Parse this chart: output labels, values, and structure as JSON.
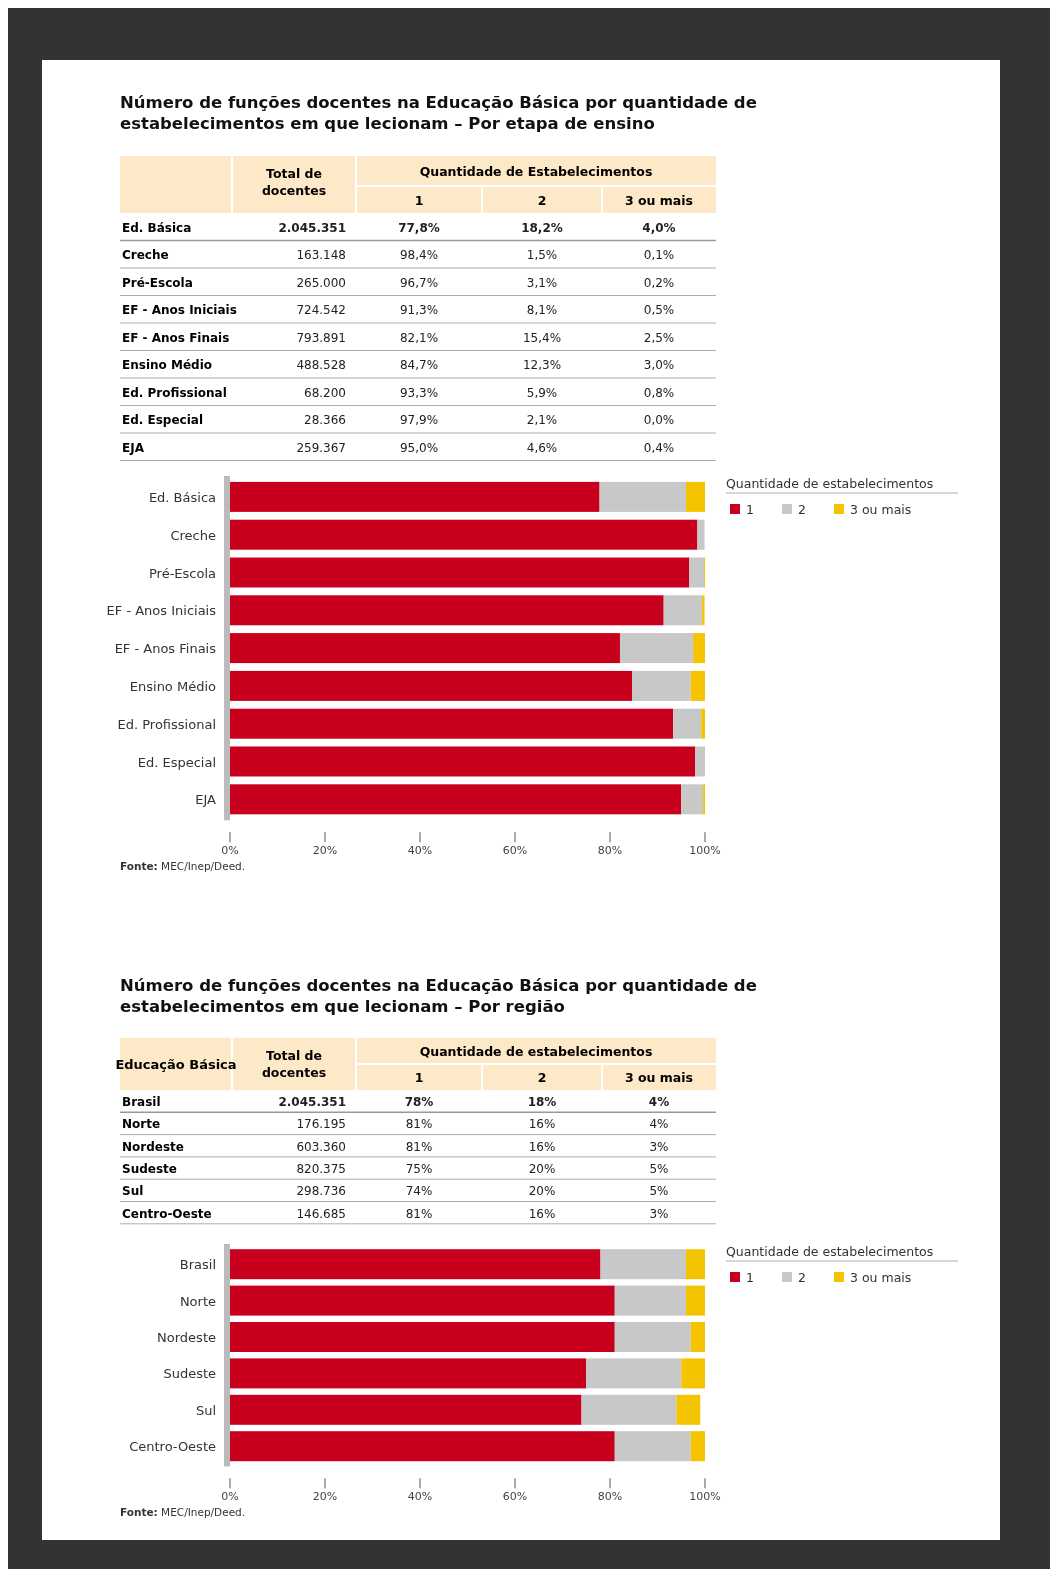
{
  "chart_data": [
    {
      "type": "other",
      "title": "Número de funções docentes na Educação Básica por quantidade de estabelecimentos em que lecionam – Por etapa de ensino",
      "categories": [
        "Ed. Básica",
        "Creche",
        "Pré-Escola",
        "EF - Anos Iniciais",
        "EF - Anos Finais",
        "Ensino Médio",
        "Ed. Profissional",
        "Ed. Especial",
        "EJA"
      ],
      "series": [
        {
          "name": "Total de docentes",
          "values": [
            2045351,
            163148,
            265000,
            724542,
            793891,
            488528,
            68200,
            28366,
            259367
          ],
          "value_labels": [
            "2.045.351",
            "163.148",
            "265.000",
            "724.542",
            "793.891",
            "488.528",
            "68.200",
            "28.366",
            "259.367"
          ]
        },
        {
          "name": "1",
          "values": [
            77.8,
            98.4,
            96.7,
            91.3,
            82.1,
            84.7,
            93.3,
            97.9,
            95.0
          ],
          "value_labels": [
            "77,8%",
            "98,4%",
            "96,7%",
            "91,3%",
            "82,1%",
            "84,7%",
            "93,3%",
            "97,9%",
            "95,0%"
          ]
        },
        {
          "name": "2",
          "values": [
            18.2,
            1.5,
            3.1,
            8.1,
            15.4,
            12.3,
            5.9,
            2.1,
            4.6
          ],
          "value_labels": [
            "18,2%",
            "1,5%",
            "3,1%",
            "8,1%",
            "15,4%",
            "12,3%",
            "5,9%",
            "2,1%",
            "4,6%"
          ]
        },
        {
          "name": "3 ou mais",
          "values": [
            4.0,
            0.1,
            0.2,
            0.5,
            2.5,
            3.0,
            0.8,
            0.0,
            0.4
          ],
          "value_labels": [
            "4,0%",
            "0,1%",
            "0,2%",
            "0,5%",
            "2,5%",
            "3,0%",
            "0,8%",
            "0,0%",
            "0,4%"
          ]
        }
      ],
      "annotations": [
        "Quantidade de Estabelecimentos"
      ]
    },
    {
      "type": "bar",
      "orientation": "horizontal",
      "stacked": true,
      "legend_title": "Quantidade de estabelecimentos",
      "legend": "right",
      "categories": [
        "Ed. Básica",
        "Creche",
        "Pré-Escola",
        "EF - Anos Iniciais",
        "EF - Anos Finais",
        "Ensino Médio",
        "Ed. Profissional",
        "Ed. Especial",
        "EJA"
      ],
      "xlim": [
        0,
        100
      ],
      "xticks": [
        {
          "value": 0,
          "label": "0%"
        },
        {
          "value": 20,
          "label": "20%"
        },
        {
          "value": 40,
          "label": "40%"
        },
        {
          "value": 60,
          "label": "60%"
        },
        {
          "value": 80,
          "label": "80%"
        },
        {
          "value": 100,
          "label": "100%"
        }
      ],
      "series": [
        {
          "name": "1",
          "color": "#c8001e",
          "values": [
            77.8,
            98.4,
            96.7,
            91.3,
            82.1,
            84.7,
            93.3,
            97.9,
            95.0
          ]
        },
        {
          "name": "2",
          "color": "#c8c8c8",
          "values": [
            18.2,
            1.5,
            3.1,
            8.1,
            15.4,
            12.3,
            5.9,
            2.1,
            4.6
          ]
        },
        {
          "name": "3 ou mais",
          "color": "#f5c400",
          "values": [
            4.0,
            null,
            0.2,
            0.5,
            2.5,
            3.0,
            0.8,
            0.0,
            0.4
          ]
        }
      ],
      "annotations": [
        "Fonte: MEC/Inep/Deed."
      ]
    },
    {
      "type": "other",
      "title": "Número de funções docentes na Educação Básica por quantidade de estabelecimentos em que lecionam – Por região",
      "categories": [
        "Brasil",
        "Norte",
        "Nordeste",
        "Sudeste",
        "Sul",
        "Centro-Oeste"
      ],
      "series": [
        {
          "name": "Total de docentes",
          "values": [
            2045351,
            176195,
            603360,
            820375,
            298736,
            146685
          ],
          "value_labels": [
            "2.045.351",
            "176.195",
            "603.360",
            "820.375",
            "298.736",
            "146.685"
          ]
        },
        {
          "name": "1",
          "values": [
            78,
            81,
            81,
            75,
            74,
            81
          ],
          "value_labels": [
            "78%",
            "81%",
            "81%",
            "75%",
            "74%",
            "81%"
          ]
        },
        {
          "name": "2",
          "values": [
            18,
            16,
            16,
            20,
            20,
            16
          ],
          "value_labels": [
            "18%",
            "16%",
            "16%",
            "20%",
            "20%",
            "16%"
          ]
        },
        {
          "name": "3 ou mais",
          "values": [
            4,
            4,
            3,
            5,
            5,
            3
          ],
          "value_labels": [
            "4%",
            "4%",
            "3%",
            "5%",
            "5%",
            "3%"
          ]
        }
      ],
      "annotations": [
        "Educação Básica",
        "Quantidade de estabelecimentos"
      ]
    },
    {
      "type": "bar",
      "orientation": "horizontal",
      "stacked": true,
      "legend_title": "Quantidade de estabelecimentos",
      "legend": "right",
      "categories": [
        "Brasil",
        "Norte",
        "Nordeste",
        "Sudeste",
        "Sul",
        "Centro-Oeste"
      ],
      "xlim": [
        0,
        100
      ],
      "xticks": [
        {
          "value": 0,
          "label": "0%"
        },
        {
          "value": 20,
          "label": "20%"
        },
        {
          "value": 40,
          "label": "40%"
        },
        {
          "value": 60,
          "label": "60%"
        },
        {
          "value": 80,
          "label": "80%"
        },
        {
          "value": 100,
          "label": "100%"
        }
      ],
      "series": [
        {
          "name": "1",
          "color": "#c8001e",
          "values": [
            78,
            81,
            81,
            75,
            74,
            81
          ]
        },
        {
          "name": "2",
          "color": "#c8c8c8",
          "values": [
            18,
            15,
            16,
            20,
            20,
            16
          ]
        },
        {
          "name": "3 ou mais",
          "color": "#f5c400",
          "values": [
            4,
            4,
            3,
            5,
            5,
            3
          ]
        }
      ],
      "annotations": [
        "Fonte: MEC/Inep/Deed."
      ]
    }
  ]
}
